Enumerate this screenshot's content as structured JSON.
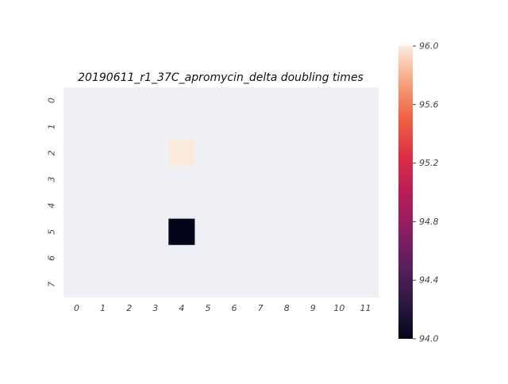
{
  "chart_data": {
    "type": "heatmap",
    "title": "20190611_r1_37C_apromycin_delta doubling times",
    "xlabel": "",
    "ylabel": "",
    "x_categories": [
      "0",
      "1",
      "2",
      "3",
      "4",
      "5",
      "6",
      "7",
      "8",
      "9",
      "10",
      "11"
    ],
    "y_categories": [
      "0",
      "1",
      "2",
      "3",
      "4",
      "5",
      "6",
      "7"
    ],
    "cells": [
      {
        "row": 2,
        "col": 4,
        "value": 96.0
      },
      {
        "row": 5,
        "col": 4,
        "value": 94.0
      }
    ],
    "missing_color": "#eff0f5",
    "colorbar": {
      "min": 94.0,
      "max": 96.0,
      "ticks": [
        "94.0",
        "94.4",
        "94.8",
        "95.2",
        "95.6",
        "96.0"
      ],
      "colormap": "rocket"
    },
    "colors": {
      "tick_text": "#444444"
    }
  }
}
